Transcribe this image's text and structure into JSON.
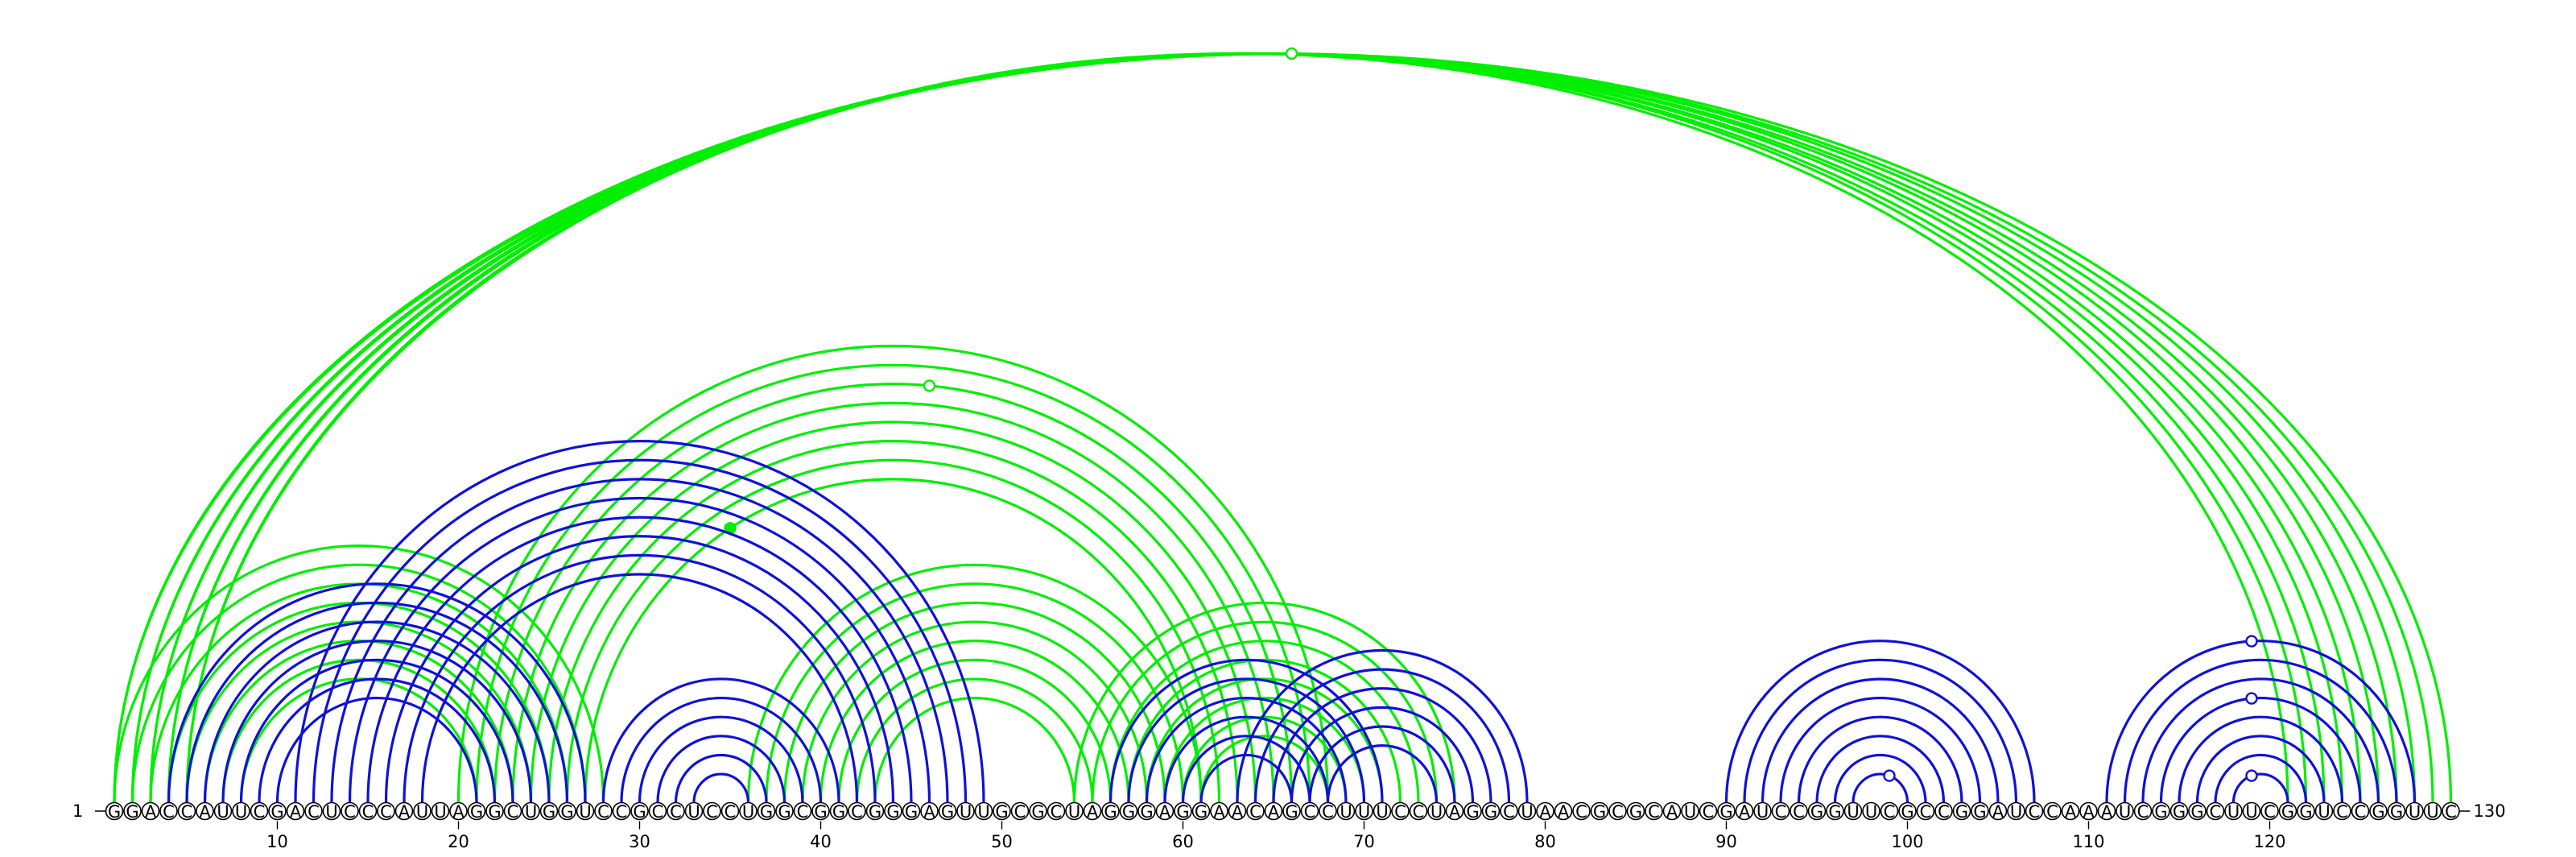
{
  "sequence": "GGACCAUUCGACUCCCAUUAGGCUGGUCCGCCUCCUGGCGGCGGGAGUUGCGCUAGGGAGGAACAGCCUUUCCUAGGCUAACGCGCAUCGAUCCGGUUCGCCGGAUCCAAAUCGGGCUUCGGUCCGGUUC",
  "start_label": "1",
  "end_label": "130",
  "tick_labels": [
    "10",
    "20",
    "30",
    "40",
    "50",
    "60",
    "70",
    "80",
    "90",
    "100",
    "110",
    "120"
  ],
  "colors": {
    "green": "#00ee00",
    "blue": "#1010d8",
    "circle_stroke": "#000000"
  },
  "chart_data": {
    "type": "arc",
    "length": 130,
    "series": [
      {
        "color": "green",
        "pairs": [
          [
            1,
            130
          ],
          [
            1,
            129
          ],
          [
            2,
            128
          ],
          [
            2,
            127
          ],
          [
            3,
            126
          ],
          [
            3,
            125
          ],
          [
            4,
            124
          ],
          [
            4,
            123
          ],
          [
            5,
            122
          ],
          [
            5,
            121
          ],
          [
            1,
            28
          ],
          [
            2,
            27
          ],
          [
            3,
            26
          ],
          [
            4,
            25
          ],
          [
            5,
            24
          ],
          [
            6,
            23
          ],
          [
            7,
            22
          ],
          [
            8,
            21
          ],
          [
            20,
            68
          ],
          [
            21,
            67
          ],
          [
            22,
            66
          ],
          [
            23,
            65
          ],
          [
            24,
            64
          ],
          [
            25,
            63
          ],
          [
            26,
            62
          ],
          [
            27,
            61
          ],
          [
            36,
            61
          ],
          [
            37,
            60
          ],
          [
            38,
            59
          ],
          [
            39,
            58
          ],
          [
            40,
            57
          ],
          [
            41,
            56
          ],
          [
            42,
            55
          ],
          [
            43,
            54
          ],
          [
            54,
            75
          ],
          [
            55,
            74
          ],
          [
            56,
            73
          ],
          [
            57,
            72
          ],
          [
            58,
            71
          ],
          [
            59,
            70
          ],
          [
            60,
            69
          ],
          [
            61,
            68
          ]
        ],
        "hollow_markers": [
          [
            66,
            "outer"
          ],
          [
            46,
            "mid"
          ]
        ],
        "filled_markers": [
          [
            35,
            "inner"
          ]
        ]
      },
      {
        "color": "blue",
        "pairs": [
          [
            4,
            27
          ],
          [
            5,
            26
          ],
          [
            6,
            25
          ],
          [
            7,
            24
          ],
          [
            8,
            23
          ],
          [
            9,
            22
          ],
          [
            10,
            21
          ],
          [
            11,
            49
          ],
          [
            12,
            48
          ],
          [
            13,
            47
          ],
          [
            14,
            46
          ],
          [
            15,
            45
          ],
          [
            16,
            44
          ],
          [
            17,
            43
          ],
          [
            18,
            42
          ],
          [
            28,
            41
          ],
          [
            29,
            40
          ],
          [
            30,
            39
          ],
          [
            31,
            38
          ],
          [
            32,
            37
          ],
          [
            33,
            36
          ],
          [
            56,
            71
          ],
          [
            57,
            70
          ],
          [
            58,
            69
          ],
          [
            59,
            68
          ],
          [
            60,
            67
          ],
          [
            61,
            66
          ],
          [
            63,
            79
          ],
          [
            64,
            78
          ],
          [
            65,
            77
          ],
          [
            66,
            76
          ],
          [
            67,
            75
          ],
          [
            68,
            74
          ],
          [
            90,
            107
          ],
          [
            91,
            106
          ],
          [
            92,
            105
          ],
          [
            93,
            104
          ],
          [
            94,
            103
          ],
          [
            95,
            102
          ],
          [
            96,
            101
          ],
          [
            97,
            100
          ],
          [
            111,
            128
          ],
          [
            112,
            127
          ],
          [
            113,
            126
          ],
          [
            114,
            125
          ],
          [
            115,
            124
          ],
          [
            116,
            123
          ],
          [
            117,
            122
          ],
          [
            118,
            121
          ]
        ],
        "hollow_markers": [
          [
            99,
            "inner"
          ],
          [
            119,
            "inner"
          ],
          [
            119,
            "mid"
          ],
          [
            119,
            "outer"
          ]
        ]
      }
    ]
  }
}
